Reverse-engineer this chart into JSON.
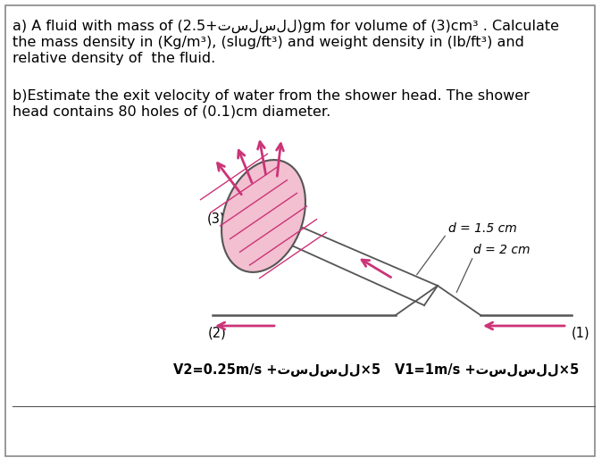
{
  "bg_color": "#ffffff",
  "border_color": "#888888",
  "line_a1": "a) A fluid with mass of (2.5+تسلسلل)gm for volume of (3)cm³ . Calculate",
  "line_a2": "the mass density in (Kg/m³), (slug/ft³) and weight density in (lb/ft³) and",
  "line_a3": "relative density of  the fluid.",
  "line_b1": "b)Estimate the exit velocity of water from the shower head. The shower",
  "line_b2": "head contains 80 holes of (0.1)cm diameter.",
  "label_3": "(3)",
  "label_2": "(2)",
  "label_1": "(1)",
  "label_d1": "d = 1.5 cm",
  "label_d2": "d = 2 cm",
  "text_v2": "V2=0.25m/s +تسلسلل×5",
  "text_v1": "V1=1m/s +تسلسلل×5",
  "pink_fill": "#f2c0d0",
  "pink_stroke": "#cc3377",
  "gray_line": "#555555",
  "font_size_main": 11.5,
  "font_size_label": 10.5,
  "font_size_small": 10
}
